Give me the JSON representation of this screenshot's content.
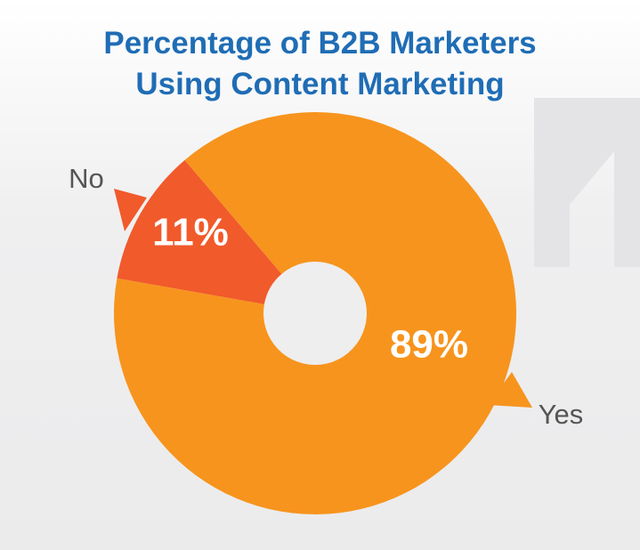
{
  "chart_data": {
    "type": "donut",
    "title": "Percentage of B2B Marketers Using Content Marketing",
    "categories": [
      "No",
      "Yes"
    ],
    "values": [
      11,
      89
    ],
    "value_labels": [
      "11%",
      "89%"
    ],
    "colors": [
      "#f15a2b",
      "#f7941d"
    ]
  }
}
